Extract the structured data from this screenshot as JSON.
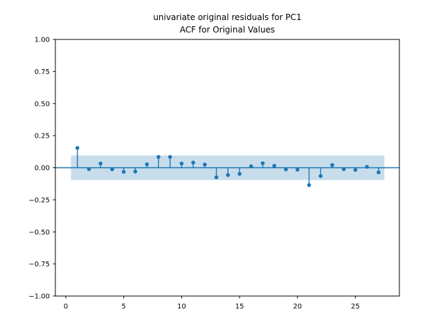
{
  "figure": {
    "title_line1": "univariate original residuals for PC1",
    "title_line2": "ACF for Original Values",
    "background": "#ffffff"
  },
  "chart_data": {
    "type": "stem",
    "title": "univariate original residuals for PC1\nACF for Original Values",
    "subtitle": "ACF for Original Values",
    "xlabel": "",
    "ylabel": "",
    "grid": false,
    "legend": null,
    "xlim": [
      -0.9,
      28.8
    ],
    "ylim": [
      -1.0,
      1.0
    ],
    "xticks": [
      {
        "v": 0,
        "label": "0"
      },
      {
        "v": 5,
        "label": "5"
      },
      {
        "v": 10,
        "label": "10"
      },
      {
        "v": 15,
        "label": "15"
      },
      {
        "v": 20,
        "label": "20"
      },
      {
        "v": 25,
        "label": "25"
      }
    ],
    "yticks": [
      {
        "v": 1.0,
        "label": "1.00"
      },
      {
        "v": 0.75,
        "label": "0.75"
      },
      {
        "v": 0.5,
        "label": "0.50"
      },
      {
        "v": 0.25,
        "label": "0.25"
      },
      {
        "v": 0.0,
        "label": "0.00"
      },
      {
        "v": -0.25,
        "label": "−0.25"
      },
      {
        "v": -0.5,
        "label": "−0.50"
      },
      {
        "v": -0.75,
        "label": "−0.75"
      },
      {
        "v": -1.0,
        "label": "−1.00"
      }
    ],
    "series": [
      {
        "name": "autocorrelation",
        "lags": [
          1,
          2,
          3,
          4,
          5,
          6,
          7,
          8,
          9,
          10,
          11,
          12,
          13,
          14,
          15,
          16,
          17,
          18,
          19,
          20,
          21,
          22,
          23,
          24,
          25,
          26,
          27
        ],
        "values": [
          0.154,
          -0.011,
          0.033,
          -0.012,
          -0.032,
          -0.03,
          0.027,
          0.084,
          0.084,
          0.033,
          0.04,
          0.025,
          -0.075,
          -0.057,
          -0.048,
          0.011,
          0.035,
          0.015,
          -0.013,
          -0.015,
          -0.135,
          -0.065,
          0.021,
          -0.011,
          -0.017,
          0.007,
          -0.036
        ]
      }
    ],
    "confidence_band": {
      "x_start": 0.45,
      "x_end": 27.5,
      "lower": -0.096,
      "upper": 0.096
    },
    "zero_line": 0.0,
    "colors": {
      "marker": "#1f77b4",
      "stem": "#1f77b4",
      "zero_line": "#1f77b4",
      "band_fill": "#1f77b4",
      "band_opacity": "0.25",
      "axis": "#000000",
      "text": "#000000",
      "background": "#ffffff"
    }
  }
}
